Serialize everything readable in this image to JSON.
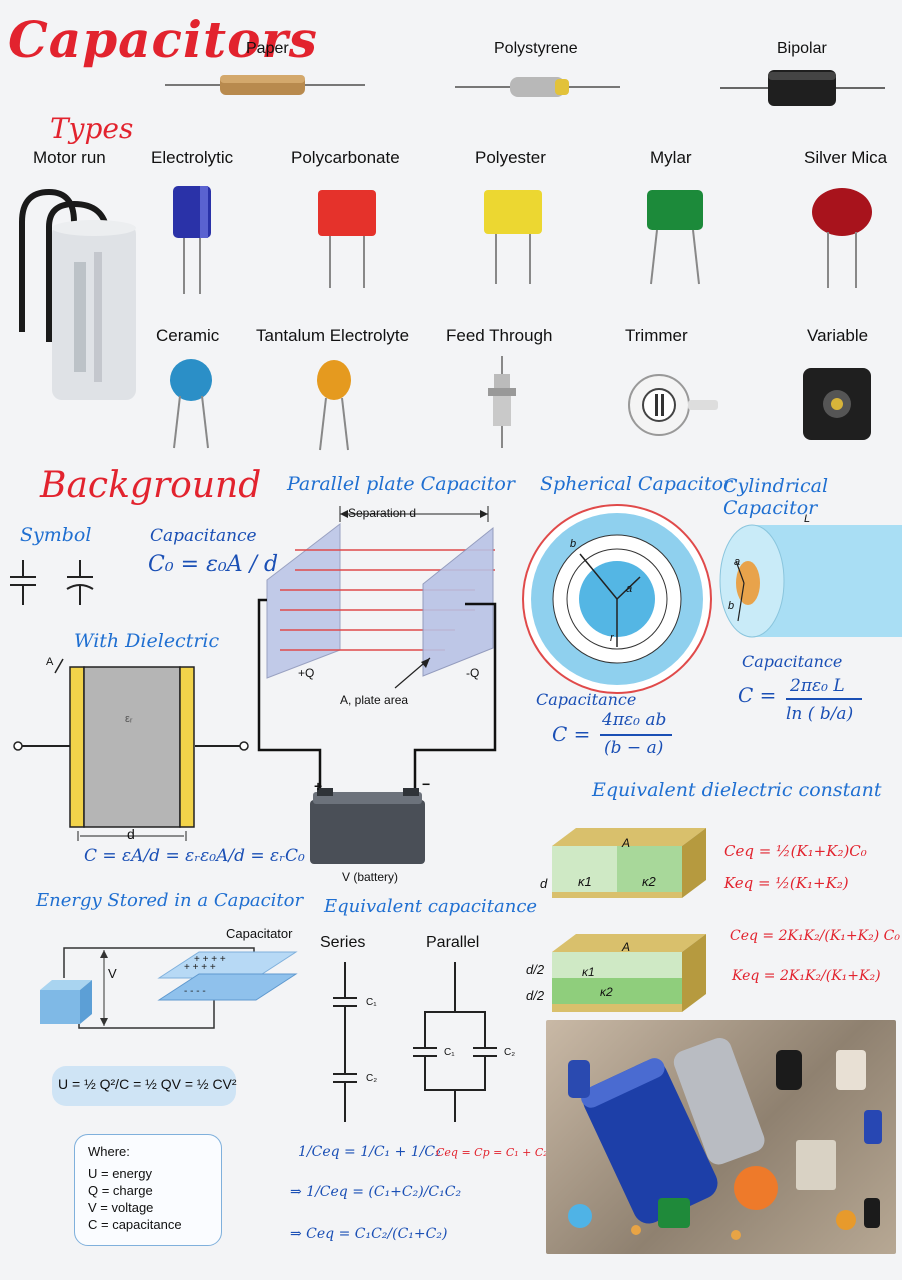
{
  "header": {
    "title": "Capacitors",
    "types_label": "Types",
    "top_items": [
      "Paper",
      "Polystyrene",
      "Bipolar"
    ]
  },
  "types_row1": [
    "Motor run",
    "Electrolytic",
    "Polycarbonate",
    "Polyester",
    "Mylar",
    "Silver Mica"
  ],
  "types_row2": [
    "Ceramic",
    "Tantalum Electrolyte",
    "Feed Through",
    "Trimmer",
    "Variable"
  ],
  "background": {
    "title": "Background",
    "symbol_label": "Symbol",
    "capacitance_label": "Capacitance",
    "capacitance_formula": "C₀ = ε₀A / d",
    "with_dielectric_label": "With Dielectric",
    "dielectric_symbol": "εᵣ",
    "dielectric_d": "d",
    "dielectric_a": "A",
    "dielectric_formula": "C = εA/d = εᵣε₀A/d = εᵣC₀ = KC₀"
  },
  "parallel_plate": {
    "title": "Parallel plate Capacitor",
    "separation": "Separation d",
    "plus_q": "+Q",
    "minus_q": "-Q",
    "area": "A, plate area",
    "battery": "V (battery)",
    "plus": "+",
    "minus": "−"
  },
  "spherical": {
    "title": "Spherical Capacitor",
    "b": "b",
    "a": "a",
    "r": "r",
    "capacitance_label": "Capacitance",
    "formula_top": "4πε₀ ab",
    "formula_bottom": "(b − a)",
    "c_eq": "C ="
  },
  "cylindrical": {
    "title": "Cylindrical Capacitor",
    "L": "L",
    "a": "a",
    "b": "b",
    "capacitance_label": "Capacitance",
    "formula_top": "2πε₀ L",
    "formula_bottom": "ln ( b/a)",
    "c_eq": "C ="
  },
  "equivalent_dielectric": {
    "title": "Equivalent dielectric constant",
    "block1_A": "A",
    "block1_d": "d",
    "k1": "κ1",
    "k2": "κ2",
    "block2_A": "A",
    "half_d_1": "d/2",
    "half_d_2": "d/2",
    "formula1_c": "Ceq = ½(K₁+K₂)C₀",
    "formula1_k": "Keq = ½(K₁+K₂)",
    "formula2_c": "Ceq = 2K₁K₂/(K₁+K₂) C₀",
    "formula2_k": "Keq = 2K₁K₂/(K₁+K₂)"
  },
  "energy": {
    "title": "Energy Stored in a Capacitor",
    "capacitor_label": "Capacitator",
    "v_label": "V",
    "equation": "U = ½ Q²/C = ½ QV = ½ CV²",
    "where_title": "Where:",
    "where_items": [
      "U = energy",
      "Q = charge",
      "V = voltage",
      "C = capacitance"
    ]
  },
  "equivalent_capacitance": {
    "title": "Equivalent capacitance",
    "series": "Series",
    "parallel": "Parallel",
    "c1": "C₁",
    "c2": "C₂",
    "series_formula1": "1/Ceq = 1/C₁ + 1/C₂",
    "series_formula2": "⇒ 1/Ceq = (C₁+C₂)/C₁C₂",
    "series_formula3": "⇒ Ceq = C₁C₂/(C₁+C₂)",
    "parallel_formula": "Ceq = Cp = C₁ + C₂"
  },
  "colors": {
    "red_ink": "#e2232e",
    "blue_ink": "#1f6fd1",
    "plate": "#b9c3e6",
    "battery": "#4a4f57",
    "sphere_outer": "#8fd0ee",
    "sphere_inner": "#54b6e4"
  }
}
